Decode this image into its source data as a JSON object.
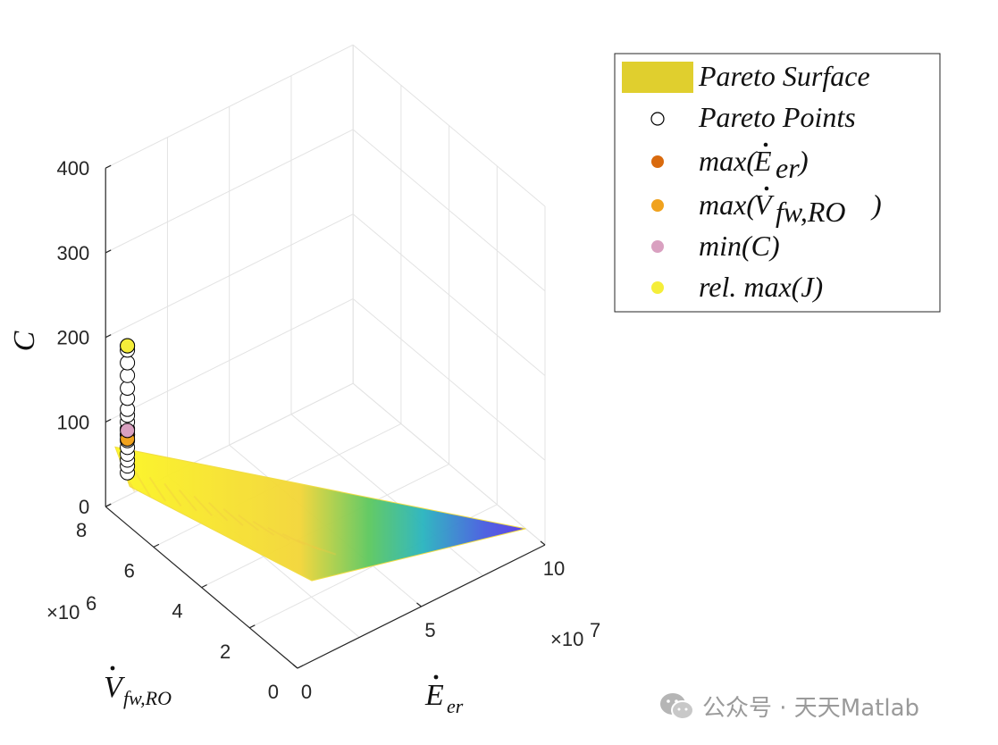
{
  "chart_data": {
    "type": "scatter",
    "view": "3d",
    "axes": {
      "x": {
        "label": "Ė_er",
        "label_main": "E",
        "label_sub": "er",
        "ticks": [
          0,
          5,
          10
        ],
        "range": [
          0,
          10
        ],
        "multiplier": "×10",
        "multiplier_exp": "7"
      },
      "y": {
        "label": "V̇_fw,RO",
        "label_main": "V",
        "label_sub": "fw,RO",
        "ticks": [
          0,
          2,
          4,
          6,
          8
        ],
        "range": [
          0,
          8
        ],
        "multiplier": "×10",
        "multiplier_exp": "6"
      },
      "z": {
        "label": "C",
        "ticks": [
          0,
          100,
          200,
          300,
          400
        ],
        "range": [
          0,
          400
        ]
      }
    },
    "grid": true,
    "legend": {
      "placement": "top-right outside",
      "entries": [
        {
          "label": "Pareto Surface",
          "marker": "patch",
          "color": "#e0cf2e"
        },
        {
          "label": "Pareto Points",
          "marker": "open-circle",
          "color": "#000000"
        },
        {
          "label": "max(Ė_er)",
          "text_main": "max(",
          "dot_char": "E",
          "sub": "er",
          "marker": "filled-circle",
          "color": "#d96a0e"
        },
        {
          "label": "max(V̇_fw,RO)",
          "text_main": "max(",
          "dot_char": "V",
          "sub": "fw,RO",
          "marker": "filled-circle",
          "color": "#f0a21e"
        },
        {
          "label": "min(C)",
          "marker": "filled-circle",
          "color": "#d9a0c0"
        },
        {
          "label": "rel. max(J)",
          "marker": "filled-circle",
          "color": "#f5ee3a"
        }
      ]
    },
    "pareto_points": {
      "x": [
        0.3,
        0.3,
        0.3,
        0.3,
        0.3,
        0.3,
        0.3,
        0.3,
        0.3,
        0.3,
        0.3,
        0.3,
        0.3,
        0.3,
        0.3,
        0.3,
        0.3
      ],
      "y": [
        7.4,
        7.4,
        7.4,
        7.4,
        7.4,
        7.4,
        7.4,
        7.4,
        7.4,
        7.4,
        7.4,
        7.4,
        7.4,
        7.4,
        7.4,
        7.4,
        7.4
      ],
      "z": [
        50,
        58,
        65,
        72,
        80,
        88,
        95,
        102,
        110,
        118,
        125,
        138,
        150,
        165,
        180,
        195,
        200
      ]
    },
    "special_points": [
      {
        "name": "max(Ė_er)",
        "x": 0.3,
        "y": 7.4,
        "z": 95
      },
      {
        "name": "max(V̇_fw,RO)",
        "x": 0.3,
        "y": 7.4,
        "z": 90
      },
      {
        "name": "min(C)",
        "x": 0.3,
        "y": 7.4,
        "z": 100
      },
      {
        "name": "rel. max(J)",
        "x": 0.3,
        "y": 7.4,
        "z": 200
      }
    ],
    "pareto_surface": {
      "corners": [
        {
          "x": 0.0,
          "y": 7.6,
          "z": 80
        },
        {
          "x": 10.0,
          "y": 0.8,
          "z": 0
        },
        {
          "x": 3.0,
          "y": 2.5,
          "z": 0
        },
        {
          "x": 0.2,
          "y": 7.2,
          "z": 40
        }
      ],
      "colormap": [
        "#fcf626",
        "#f3d63a",
        "#5ec962",
        "#2cb5c0",
        "#4b5fe0",
        "#5a3ce8"
      ]
    }
  },
  "watermark": {
    "text": "公众号 · 天天Matlab"
  }
}
